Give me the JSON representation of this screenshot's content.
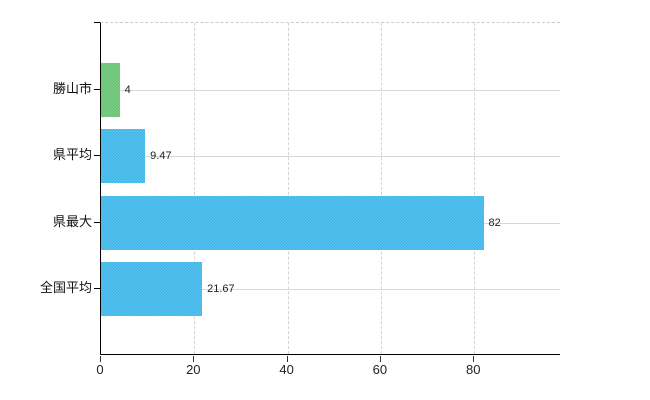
{
  "chart_data": {
    "type": "bar",
    "orientation": "horizontal",
    "title": "",
    "xlabel": "",
    "ylabel": "",
    "categories": [
      "勝山市",
      "県平均",
      "県最大",
      "全国平均"
    ],
    "values": [
      4,
      9.47,
      82,
      21.67
    ],
    "value_labels": [
      "4",
      "9.47",
      "82",
      "21.67"
    ],
    "bar_colors": [
      "#6cc979",
      "#41bdf1",
      "#41bdf1",
      "#41bdf1"
    ],
    "xticks": [
      0,
      20,
      40,
      60,
      80
    ],
    "xtick_labels": [
      "0",
      "20",
      "40",
      "60",
      "80"
    ],
    "xlim": [
      0,
      98.6
    ],
    "grid": true,
    "legend": false
  },
  "colors": {
    "background": "#ffffff",
    "axis": "#000000",
    "grid_horizontal": "#d4dad4",
    "grid_vertical": "#d6d2d8",
    "text": "#222222",
    "bar_green": "#6cc979",
    "bar_blue": "#41bdf1"
  }
}
